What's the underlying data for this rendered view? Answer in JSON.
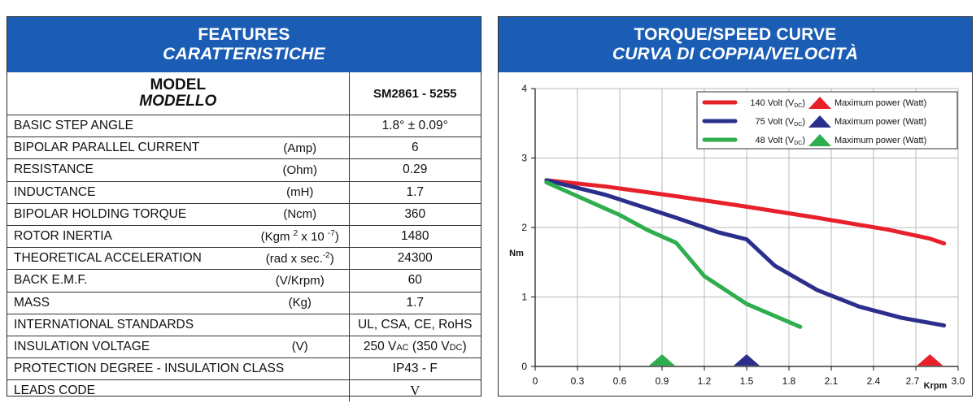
{
  "features": {
    "title": "FEATURES",
    "subtitle": "CARATTERISTICHE",
    "model_label": "MODEL",
    "model_label_it": "MODELLO",
    "model_value": "SM2861 - 5255",
    "rows": [
      {
        "name": "BASIC STEP ANGLE",
        "unit": "",
        "value": "1.8°  ± 0.09°"
      },
      {
        "name": "BIPOLAR PARALLEL CURRENT",
        "unit": "(Amp)",
        "value": "6"
      },
      {
        "name": "RESISTANCE",
        "unit": "(Ohm)",
        "value": "0.29"
      },
      {
        "name": "INDUCTANCE",
        "unit": "(mH)",
        "value": "1.7"
      },
      {
        "name": "BIPOLAR HOLDING TORQUE",
        "unit": "(Ncm)",
        "value": "360"
      },
      {
        "name": "ROTOR INERTIA",
        "unit_parts": [
          "(Kgm ",
          "2",
          " x 10 ",
          "-7",
          ")"
        ],
        "value": "1480"
      },
      {
        "name": "THEORETICAL ACCELERATION",
        "unit_parts": [
          "(rad x sec.",
          "-2",
          ")"
        ],
        "value": "24300"
      },
      {
        "name": "BACK E.M.F.",
        "unit": "(V/Krpm)",
        "value": "60"
      },
      {
        "name": "MASS",
        "unit": "(Kg)",
        "value": "1.7"
      },
      {
        "name": "INTERNATIONAL STANDARDS",
        "unit": "",
        "value": "UL, CSA, CE, RoHS"
      },
      {
        "name": "INSULATION VOLTAGE",
        "unit": "(V)",
        "value_parts": [
          "250 V",
          "AC",
          " (350 V",
          "DC",
          ")"
        ]
      },
      {
        "name": "PROTECTION DEGREE - INSULATION CLASS",
        "unit": "",
        "value": "IP43 - F"
      },
      {
        "name": "LEADS CODE",
        "unit": "",
        "value": "V"
      }
    ]
  },
  "chart_data": {
    "type": "line",
    "title": "TORQUE/SPEED CURVE",
    "subtitle": "CURVA DI COPPIA/VELOCITÀ",
    "xlabel": "Krpm",
    "ylabel": "Nm",
    "xlim": [
      0,
      3.0
    ],
    "ylim": [
      0,
      4
    ],
    "x_ticks": [
      "0",
      "0.3",
      "0.6",
      "0.9",
      "1.2",
      "1.5",
      "1.8",
      "2.1",
      "2.4",
      "2.7",
      "3.0"
    ],
    "y_ticks": [
      "0",
      "1",
      "2",
      "3",
      "4"
    ],
    "grid": true,
    "legend_position": "top-right",
    "legend_marker_text": "Maximum power (Watt)",
    "series": [
      {
        "name": "140 Volt (V",
        "name_sub": "DC",
        "name_end": ")",
        "color": "#e8202a",
        "x": [
          0.08,
          0.5,
          1.0,
          1.5,
          2.0,
          2.5,
          2.8,
          2.9
        ],
        "y": [
          2.68,
          2.59,
          2.45,
          2.3,
          2.14,
          1.97,
          1.84,
          1.77
        ],
        "max_power_x": 2.8
      },
      {
        "name": "75 Volt (V",
        "name_sub": "DC",
        "name_end": ")",
        "color": "#2b2f8c",
        "x": [
          0.08,
          0.5,
          1.0,
          1.3,
          1.5,
          1.7,
          2.0,
          2.3,
          2.6,
          2.9
        ],
        "y": [
          2.68,
          2.47,
          2.14,
          1.93,
          1.83,
          1.45,
          1.1,
          0.86,
          0.7,
          0.59
        ],
        "max_power_x": 1.5
      },
      {
        "name": "48 Volt (V",
        "name_sub": "DC",
        "name_end": ")",
        "color": "#2eae4e",
        "x": [
          0.08,
          0.3,
          0.6,
          0.8,
          1.0,
          1.2,
          1.5,
          1.88
        ],
        "y": [
          2.65,
          2.45,
          2.18,
          1.96,
          1.78,
          1.3,
          0.9,
          0.57
        ],
        "max_power_x": 0.9
      }
    ]
  }
}
